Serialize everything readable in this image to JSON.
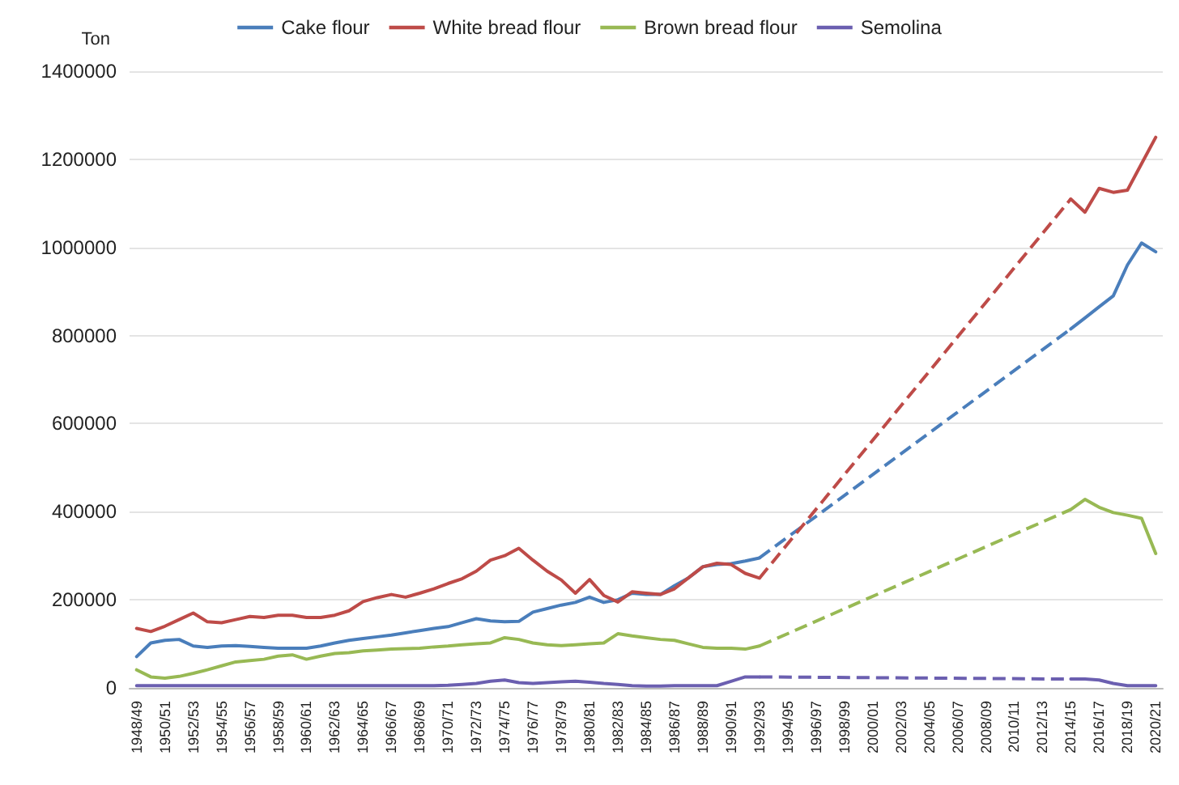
{
  "chart_data": {
    "type": "line",
    "ylabel": "Ton",
    "categories": [
      "1948/49",
      null,
      "1950/51",
      null,
      "1952/53",
      null,
      "1954/55",
      null,
      "1956/57",
      null,
      "1958/59",
      null,
      "1960/61",
      null,
      "1962/63",
      null,
      "1964/65",
      null,
      "1966/67",
      null,
      "1968/69",
      null,
      "1970/71",
      null,
      "1972/73",
      null,
      "1974/75",
      null,
      "1976/77",
      null,
      "1978/79",
      null,
      "1980/81",
      null,
      "1982/83",
      null,
      "1984/85",
      null,
      "1986/87",
      null,
      "1988/89",
      null,
      "1990/91",
      null,
      "1992/93",
      null,
      "1994/95",
      null,
      "1996/97",
      null,
      "1998/99",
      null,
      "2000/01",
      null,
      "2002/03",
      null,
      "2004/05",
      null,
      "2006/07",
      null,
      "2008/09",
      null,
      "2010/11",
      null,
      "2012/13",
      null,
      "2014/15",
      null,
      "2016/17",
      null,
      "2018/19",
      null,
      "2020/21"
    ],
    "series": [
      {
        "name": "Cake flour",
        "color": "#4a7ebb",
        "values": [
          71000,
          102000,
          108000,
          110000,
          95000,
          92000,
          95000,
          96000,
          94000,
          92000,
          90000,
          90000,
          90000,
          95000,
          102000,
          108000,
          112000,
          116000,
          120000,
          125000,
          130000,
          135000,
          139000,
          148000,
          157000,
          152000,
          150000,
          151000,
          172000,
          180000,
          188000,
          194000,
          206000,
          194000,
          200000,
          215000,
          212000,
          212000,
          232000,
          250000,
          275000,
          280000,
          282000,
          288000,
          295000,
          null,
          null,
          null,
          null,
          null,
          null,
          null,
          null,
          null,
          null,
          null,
          null,
          null,
          null,
          null,
          null,
          null,
          null,
          null,
          null,
          null,
          815000,
          840000,
          865000,
          890000,
          960000,
          1010000,
          990000
        ]
      },
      {
        "name": "White bread flour",
        "color": "#be4b48",
        "values": [
          135000,
          128000,
          140000,
          155000,
          170000,
          150000,
          148000,
          155000,
          162000,
          160000,
          165000,
          165000,
          160000,
          160000,
          165000,
          175000,
          196000,
          205000,
          212000,
          206000,
          215000,
          225000,
          237000,
          248000,
          265000,
          290000,
          300000,
          317000,
          290000,
          265000,
          245000,
          215000,
          246000,
          210000,
          195000,
          218000,
          215000,
          212000,
          225000,
          250000,
          275000,
          283000,
          280000,
          260000,
          249000,
          null,
          null,
          null,
          null,
          null,
          null,
          null,
          null,
          null,
          null,
          null,
          null,
          null,
          null,
          null,
          null,
          null,
          null,
          null,
          null,
          null,
          1110000,
          1080000,
          1134000,
          1125000,
          1130000,
          1190000,
          1250000
        ]
      },
      {
        "name": "Brown bread flour",
        "color": "#98b954",
        "values": [
          41000,
          25000,
          22000,
          26000,
          33000,
          41000,
          50000,
          59000,
          62000,
          65000,
          72000,
          75000,
          65000,
          72000,
          78000,
          80000,
          84000,
          86000,
          88000,
          89000,
          90000,
          93000,
          95000,
          98000,
          100000,
          102000,
          114000,
          110000,
          102000,
          98000,
          96000,
          98000,
          100000,
          102000,
          123000,
          118000,
          114000,
          110000,
          108000,
          100000,
          92000,
          90000,
          90000,
          88000,
          95000,
          null,
          null,
          null,
          null,
          null,
          null,
          null,
          null,
          null,
          null,
          null,
          null,
          null,
          null,
          null,
          null,
          null,
          null,
          null,
          null,
          null,
          405000,
          428000,
          410000,
          398000,
          392000,
          385000,
          305000
        ]
      },
      {
        "name": "Semolina",
        "color": "#6b5fb0",
        "values": [
          5000,
          5000,
          5000,
          5000,
          5000,
          5000,
          5000,
          5000,
          5000,
          5000,
          5000,
          5000,
          5000,
          5000,
          5000,
          5000,
          5000,
          5000,
          5000,
          5000,
          5000,
          5000,
          6000,
          8000,
          10000,
          15000,
          18000,
          12000,
          10000,
          12000,
          14000,
          15000,
          13000,
          10000,
          8000,
          5000,
          4000,
          4000,
          5000,
          5000,
          5000,
          5000,
          15000,
          25000,
          25000,
          null,
          null,
          null,
          null,
          null,
          null,
          null,
          null,
          null,
          null,
          null,
          null,
          null,
          null,
          null,
          null,
          null,
          null,
          null,
          null,
          null,
          20000,
          20000,
          18000,
          10000,
          5000,
          5000,
          5000
        ]
      }
    ],
    "ylim": [
      0,
      1400000
    ],
    "yticks": [
      0,
      200000,
      400000,
      600000,
      800000,
      1000000,
      1200000,
      1400000
    ],
    "grid": "y",
    "legend": "top",
    "marker": "none",
    "line_style": "solid"
  }
}
